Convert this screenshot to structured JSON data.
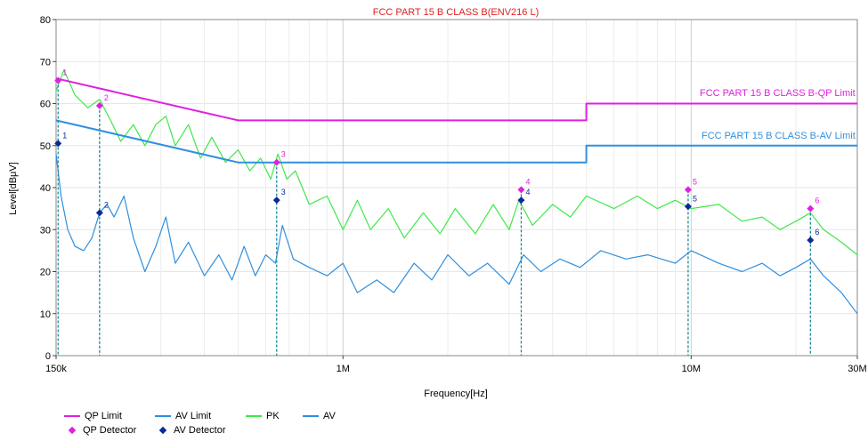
{
  "chart_data": {
    "type": "line",
    "title": "FCC PART 15 B CLASS B(ENV216 L)",
    "xlabel": "Frequency[Hz]",
    "ylabel": "Level[dBμV]",
    "x_scale": "log",
    "xlim": [
      150000,
      30000000
    ],
    "ylim": [
      0,
      80
    ],
    "x_ticks": [
      {
        "value": 150000,
        "label": "150k"
      },
      {
        "value": 1000000,
        "label": "1M"
      },
      {
        "value": 10000000,
        "label": "10M"
      },
      {
        "value": 30000000,
        "label": "30M"
      }
    ],
    "y_ticks": [
      0,
      10,
      20,
      30,
      40,
      50,
      60,
      70,
      80
    ],
    "limit_labels": {
      "qp": "FCC PART 15 B CLASS B-QP Limit",
      "av": "FCC PART 15 B CLASS B-AV Limit"
    },
    "colors": {
      "qp_limit": "#e020e0",
      "av_limit": "#2f8fe0",
      "pk": "#3ee84a",
      "av": "#2f8fe0",
      "qp_detector": "#e020e0",
      "av_detector": "#0a2a9a",
      "marker_line": "#1a8a9a",
      "title": "#e02020"
    },
    "series": [
      {
        "name": "QP Limit",
        "points": [
          [
            150000,
            66
          ],
          [
            500000,
            56
          ],
          [
            5000000,
            56
          ],
          [
            5000000,
            60
          ],
          [
            30000000,
            60
          ]
        ]
      },
      {
        "name": "AV Limit",
        "points": [
          [
            150000,
            56
          ],
          [
            500000,
            46
          ],
          [
            5000000,
            46
          ],
          [
            5000000,
            50
          ],
          [
            30000000,
            50
          ]
        ]
      },
      {
        "name": "PK",
        "points": [
          [
            150000,
            63
          ],
          [
            158000,
            68
          ],
          [
            170000,
            62
          ],
          [
            185000,
            59
          ],
          [
            200000,
            61
          ],
          [
            215000,
            56
          ],
          [
            230000,
            51
          ],
          [
            250000,
            55
          ],
          [
            270000,
            50
          ],
          [
            290000,
            55
          ],
          [
            310000,
            57
          ],
          [
            330000,
            50
          ],
          [
            360000,
            55
          ],
          [
            390000,
            47
          ],
          [
            420000,
            52
          ],
          [
            460000,
            46
          ],
          [
            500000,
            49
          ],
          [
            540000,
            44
          ],
          [
            580000,
            47
          ],
          [
            620000,
            42
          ],
          [
            650000,
            48
          ],
          [
            690000,
            42
          ],
          [
            730000,
            44
          ],
          [
            800000,
            36
          ],
          [
            900000,
            38
          ],
          [
            1000000,
            30
          ],
          [
            1100000,
            37
          ],
          [
            1200000,
            30
          ],
          [
            1350000,
            35
          ],
          [
            1500000,
            28
          ],
          [
            1700000,
            34
          ],
          [
            1900000,
            29
          ],
          [
            2100000,
            35
          ],
          [
            2400000,
            29
          ],
          [
            2700000,
            36
          ],
          [
            3000000,
            30
          ],
          [
            3200000,
            37
          ],
          [
            3500000,
            31
          ],
          [
            4000000,
            36
          ],
          [
            4500000,
            33
          ],
          [
            5000000,
            38
          ],
          [
            6000000,
            35
          ],
          [
            7000000,
            38
          ],
          [
            8000000,
            35
          ],
          [
            9000000,
            37
          ],
          [
            10000000,
            35
          ],
          [
            12000000,
            36
          ],
          [
            14000000,
            32
          ],
          [
            16000000,
            33
          ],
          [
            18000000,
            30
          ],
          [
            20000000,
            32
          ],
          [
            22000000,
            34
          ],
          [
            24000000,
            30
          ],
          [
            27000000,
            27
          ],
          [
            30000000,
            24
          ]
        ]
      },
      {
        "name": "AV",
        "points": [
          [
            150000,
            48
          ],
          [
            155000,
            38
          ],
          [
            162000,
            30
          ],
          [
            170000,
            26
          ],
          [
            180000,
            25
          ],
          [
            190000,
            28
          ],
          [
            200000,
            34
          ],
          [
            210000,
            36
          ],
          [
            220000,
            33
          ],
          [
            235000,
            38
          ],
          [
            250000,
            28
          ],
          [
            270000,
            20
          ],
          [
            290000,
            26
          ],
          [
            310000,
            33
          ],
          [
            330000,
            22
          ],
          [
            360000,
            27
          ],
          [
            400000,
            19
          ],
          [
            440000,
            24
          ],
          [
            480000,
            18
          ],
          [
            520000,
            26
          ],
          [
            560000,
            19
          ],
          [
            600000,
            24
          ],
          [
            640000,
            22
          ],
          [
            670000,
            31
          ],
          [
            720000,
            23
          ],
          [
            800000,
            21
          ],
          [
            900000,
            19
          ],
          [
            1000000,
            22
          ],
          [
            1100000,
            15
          ],
          [
            1250000,
            18
          ],
          [
            1400000,
            15
          ],
          [
            1600000,
            22
          ],
          [
            1800000,
            18
          ],
          [
            2000000,
            24
          ],
          [
            2300000,
            19
          ],
          [
            2600000,
            22
          ],
          [
            3000000,
            17
          ],
          [
            3300000,
            24
          ],
          [
            3700000,
            20
          ],
          [
            4200000,
            23
          ],
          [
            4800000,
            21
          ],
          [
            5500000,
            25
          ],
          [
            6500000,
            23
          ],
          [
            7500000,
            24
          ],
          [
            9000000,
            22
          ],
          [
            10000000,
            25
          ],
          [
            12000000,
            22
          ],
          [
            14000000,
            20
          ],
          [
            16000000,
            22
          ],
          [
            18000000,
            19
          ],
          [
            20000000,
            21
          ],
          [
            22000000,
            23
          ],
          [
            24000000,
            19
          ],
          [
            27000000,
            15
          ],
          [
            30000000,
            10
          ]
        ]
      }
    ],
    "markers": [
      {
        "id": "1",
        "freq": 152000,
        "qp": 65.5,
        "av": 50.5
      },
      {
        "id": "2",
        "freq": 200000,
        "qp": 59.5,
        "av": 34.0
      },
      {
        "id": "3",
        "freq": 645000,
        "qp": 46.0,
        "av": 37.0
      },
      {
        "id": "4",
        "freq": 3250000,
        "qp": 39.5,
        "av": 37.0
      },
      {
        "id": "5",
        "freq": 9800000,
        "qp": 39.5,
        "av": 35.5
      },
      {
        "id": "6",
        "freq": 22000000,
        "qp": 35.0,
        "av": 27.5
      }
    ],
    "legend": {
      "position": "bottom-left",
      "qp_limit": "QP Limit",
      "av_limit": "AV Limit",
      "pk": "PK",
      "av": "AV",
      "qp_detector": "QP Detector",
      "av_detector": "AV Detector"
    }
  }
}
